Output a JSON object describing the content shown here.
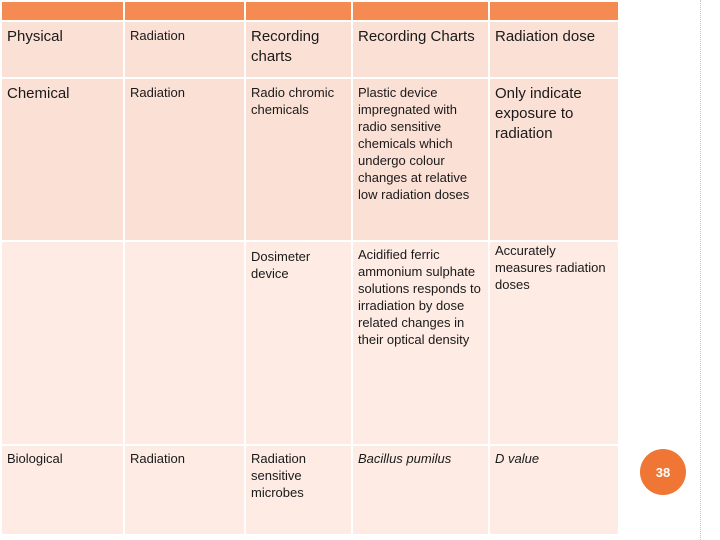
{
  "colors": {
    "header_bar": "#f58b52",
    "cell_bg_upper": "#fbe0d6",
    "cell_bg_lower": "#fdebe4",
    "badge": "#f07636"
  },
  "rows": [
    {
      "category": "Physical",
      "agent": "Radiation",
      "indicator": "Recording charts",
      "description": "Recording Charts",
      "measures": "Radiation dose"
    },
    {
      "category": "Chemical",
      "agent": "Radiation",
      "indicator": "Radio chromic chemicals",
      "description": "Plastic device impregnated with radio sensitive chemicals which undergo colour changes at relative low radiation doses",
      "measures": "Only indicate exposure to radiation"
    },
    {
      "category": "",
      "agent": "",
      "indicator": "Dosimeter device",
      "description": "Acidified ferric ammonium sulphate solutions responds to irradiation by dose related changes in their optical density",
      "measures": "Accurately measures radiation doses"
    },
    {
      "category": "Biological",
      "agent": "Radiation",
      "indicator": "Radiation sensitive microbes",
      "description": "Bacillus pumilus",
      "measures": "D value"
    }
  ],
  "page_number": "38"
}
